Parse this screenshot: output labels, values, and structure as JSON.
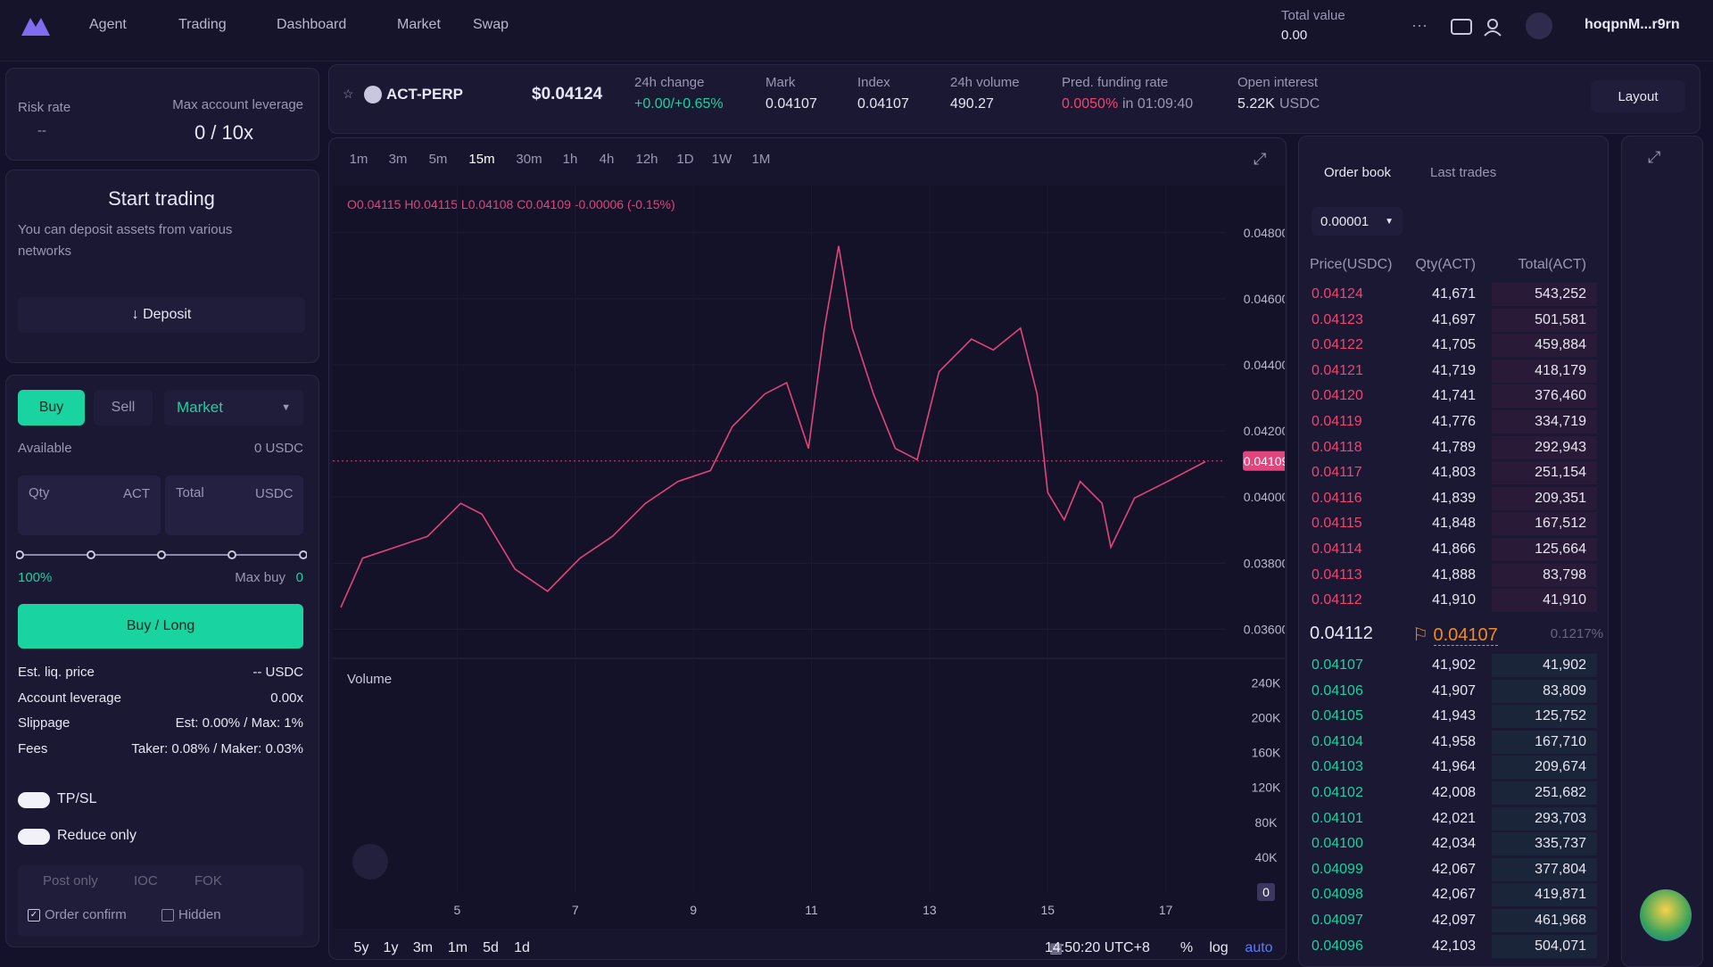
{
  "nav": {
    "items": [
      "Agent",
      "Trading",
      "Dashboard",
      "Market",
      "Swap"
    ],
    "total_value_label": "Total value",
    "total_value": "0.00",
    "account": "hoqpnM...r9rn"
  },
  "ticker": {
    "symbol": "ACT-PERP",
    "price": "$0.04124",
    "stats": [
      {
        "label": "24h change",
        "value": "+0.00/+0.65%"
      },
      {
        "label": "Mark",
        "value": "0.04107"
      },
      {
        "label": "Index",
        "value": "0.04107"
      },
      {
        "label": "24h volume",
        "value": "490.27"
      },
      {
        "label": "Pred. funding rate",
        "value": "0.0050%",
        "note": "in 01:09:40"
      },
      {
        "label": "Open interest",
        "value": "5.22K",
        "note": "USDC"
      }
    ],
    "layout": "Layout"
  },
  "account": {
    "risk_rate_label": "Risk rate",
    "risk_rate": "--",
    "leverage_label": "Max account leverage",
    "leverage": "0 / 10x"
  },
  "deposit": {
    "title": "Start trading",
    "text": "You can deposit assets from various networks",
    "button": "Deposit"
  },
  "order_form": {
    "buy": "Buy",
    "sell": "Sell",
    "order_type": "Market",
    "available_label": "Available",
    "available": "0 USDC",
    "qty_label": "Qty",
    "qty_unit": "ACT",
    "total_label": "Total",
    "total_unit": "USDC",
    "percent": "100%",
    "max_buy_label": "Max buy",
    "max_buy": "0",
    "submit": "Buy / Long",
    "details": [
      [
        "Est. liq. price",
        "-- USDC"
      ],
      [
        "Account leverage",
        "0.00x"
      ],
      [
        "Slippage",
        "Est: 0.00% / Max: 1%"
      ],
      [
        "Fees",
        "Taker: 0.08% / Maker: 0.03%"
      ]
    ],
    "tpsl": "TP/SL",
    "reduce_only": "Reduce only",
    "tif": [
      "Post only",
      "IOC",
      "FOK"
    ],
    "order_confirm": "Order confirm",
    "hidden": "Hidden"
  },
  "chart": {
    "type": "line",
    "intervals": [
      "1m",
      "3m",
      "5m",
      "15m",
      "30m",
      "1h",
      "4h",
      "12h",
      "1D",
      "1W",
      "1M"
    ],
    "ohlc": "O0.04115 H0.04115 L0.04108 C0.04109 -0.00006 (-0.15%)",
    "x": [
      3.03,
      3.4,
      3.95,
      4.5,
      5.06,
      5.42,
      5.98,
      6.53,
      7.08,
      7.63,
      8.19,
      8.74,
      9.29,
      9.66,
      10.21,
      10.58,
      10.95,
      11.22,
      11.46,
      11.69,
      12.05,
      12.42,
      12.79,
      13.16,
      13.71,
      14.08,
      14.54,
      14.82,
      15.0,
      15.28,
      15.55,
      15.92,
      16.07,
      16.47,
      17.03,
      17.67
    ],
    "values": [
      0.03666,
      0.03815,
      0.03848,
      0.03881,
      0.03981,
      0.03948,
      0.03782,
      0.03715,
      0.03815,
      0.03881,
      0.03981,
      0.04047,
      0.0408,
      0.04213,
      0.04312,
      0.04346,
      0.04147,
      0.04511,
      0.0476,
      0.04511,
      0.04312,
      0.04147,
      0.04113,
      0.04379,
      0.04478,
      0.04445,
      0.04511,
      0.04312,
      0.04014,
      0.03931,
      0.04047,
      0.03981,
      0.03848,
      0.03997,
      0.04047,
      0.04107
    ],
    "color": "#e0457b",
    "xlim": [
      3.0,
      17.7
    ],
    "xticks": [
      5,
      7,
      9,
      11,
      13,
      15,
      17
    ],
    "ylim": [
      0.0352,
      0.0491
    ],
    "yticks": [
      {
        "value": 0.048,
        "label": "0.04800"
      },
      {
        "value": 0.046,
        "label": "0.04600"
      },
      {
        "value": 0.044,
        "label": "0.04400"
      },
      {
        "value": 0.042,
        "label": "0.04200"
      },
      {
        "value": 0.04,
        "label": "0.04000"
      },
      {
        "value": 0.038,
        "label": "0.03800"
      },
      {
        "value": 0.036,
        "label": "0.03600"
      }
    ],
    "last_price": {
      "value": 0.04109,
      "label": "0.04109"
    },
    "volume": {
      "title": "Volume",
      "ylim": [
        0,
        265000
      ],
      "yticks": [
        {
          "value": 240000,
          "label": "240K"
        },
        {
          "value": 200000,
          "label": "200K"
        },
        {
          "value": 160000,
          "label": "160K"
        },
        {
          "value": 120000,
          "label": "120K"
        },
        {
          "value": 80000,
          "label": "80K"
        },
        {
          "value": 40000,
          "label": "40K"
        },
        0
      ]
    },
    "ranges": [
      "5y",
      "1y",
      "3m",
      "1m",
      "5d",
      "1d"
    ],
    "clock": "14:50:20 UTC+8",
    "scale_buttons": [
      "%",
      "log",
      "auto"
    ]
  },
  "order_book": {
    "tabs": [
      "Order book",
      "Last trades"
    ],
    "tick_size": "0.00001",
    "columns": [
      "Price(USDC)",
      "Qty(ACT)",
      "Total(ACT)"
    ],
    "asks": [
      [
        "0.04124",
        "41,671",
        "543,252"
      ],
      [
        "0.04123",
        "41,697",
        "501,581"
      ],
      [
        "0.04122",
        "41,705",
        "459,884"
      ],
      [
        "0.04121",
        "41,719",
        "418,179"
      ],
      [
        "0.04120",
        "41,741",
        "376,460"
      ],
      [
        "0.04119",
        "41,776",
        "334,719"
      ],
      [
        "0.04118",
        "41,789",
        "292,943"
      ],
      [
        "0.04117",
        "41,803",
        "251,154"
      ],
      [
        "0.04116",
        "41,839",
        "209,351"
      ],
      [
        "0.04115",
        "41,848",
        "167,512"
      ],
      [
        "0.04114",
        "41,866",
        "125,664"
      ],
      [
        "0.04113",
        "41,888",
        "83,798"
      ],
      [
        "0.04112",
        "41,910",
        "41,910"
      ]
    ],
    "mid": {
      "last": "0.04112",
      "mark": "0.04107",
      "spread": "0.1217%"
    },
    "bids": [
      [
        "0.04107",
        "41,902",
        "41,902"
      ],
      [
        "0.04106",
        "41,907",
        "83,809"
      ],
      [
        "0.04105",
        "41,943",
        "125,752"
      ],
      [
        "0.04104",
        "41,958",
        "167,710"
      ],
      [
        "0.04103",
        "41,964",
        "209,674"
      ],
      [
        "0.04102",
        "42,008",
        "251,682"
      ],
      [
        "0.04101",
        "42,021",
        "293,703"
      ],
      [
        "0.04100",
        "42,034",
        "335,737"
      ],
      [
        "0.04099",
        "42,067",
        "377,804"
      ],
      [
        "0.04098",
        "42,067",
        "419,871"
      ],
      [
        "0.04097",
        "42,097",
        "461,968"
      ],
      [
        "0.04096",
        "42,103",
        "504,071"
      ]
    ]
  }
}
